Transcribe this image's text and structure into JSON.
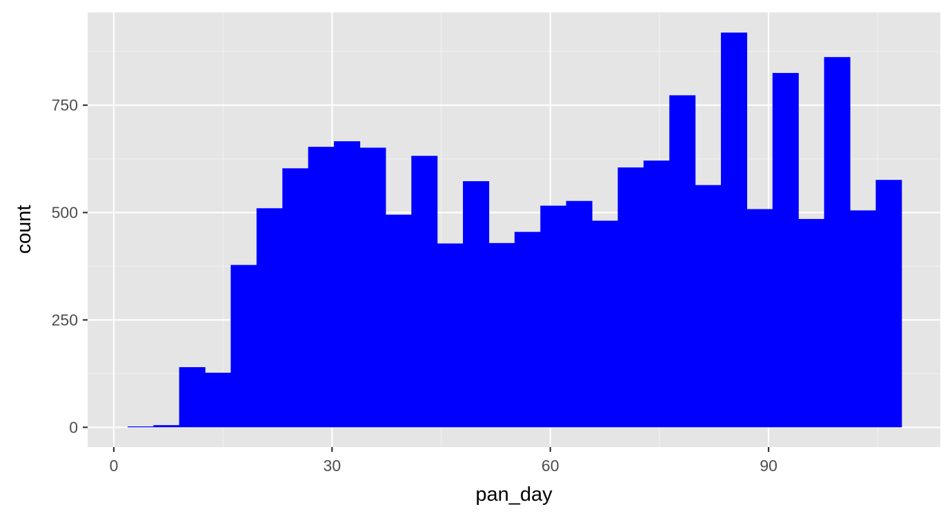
{
  "chart_data": {
    "type": "bar",
    "subtype": "histogram",
    "xlabel": "pan_day",
    "ylabel": "count",
    "xlim": [
      -3.6,
      113.6
    ],
    "ylim": [
      -46,
      966
    ],
    "x_ticks": [
      0,
      30,
      60,
      90
    ],
    "x_minor": [
      15,
      45,
      75,
      105
    ],
    "y_ticks": [
      0,
      250,
      500,
      750
    ],
    "y_minor": [
      125,
      375,
      625,
      875
    ],
    "bin_width": 3.55,
    "bars": [
      {
        "x0": 1.89,
        "x1": 5.44,
        "count": 2
      },
      {
        "x0": 5.44,
        "x1": 8.98,
        "count": 5
      },
      {
        "x0": 8.98,
        "x1": 12.53,
        "count": 140
      },
      {
        "x0": 12.53,
        "x1": 16.07,
        "count": 127
      },
      {
        "x0": 16.07,
        "x1": 19.62,
        "count": 378
      },
      {
        "x0": 19.62,
        "x1": 23.17,
        "count": 510
      },
      {
        "x0": 23.17,
        "x1": 26.71,
        "count": 603
      },
      {
        "x0": 26.71,
        "x1": 30.26,
        "count": 653
      },
      {
        "x0": 30.26,
        "x1": 33.81,
        "count": 666
      },
      {
        "x0": 33.81,
        "x1": 37.35,
        "count": 651
      },
      {
        "x0": 37.35,
        "x1": 40.9,
        "count": 495
      },
      {
        "x0": 40.9,
        "x1": 44.44,
        "count": 632
      },
      {
        "x0": 44.44,
        "x1": 47.99,
        "count": 428
      },
      {
        "x0": 47.99,
        "x1": 51.54,
        "count": 573
      },
      {
        "x0": 51.54,
        "x1": 55.08,
        "count": 429
      },
      {
        "x0": 55.08,
        "x1": 58.63,
        "count": 455
      },
      {
        "x0": 58.63,
        "x1": 62.17,
        "count": 516
      },
      {
        "x0": 62.17,
        "x1": 65.72,
        "count": 527
      },
      {
        "x0": 65.72,
        "x1": 69.27,
        "count": 481
      },
      {
        "x0": 69.27,
        "x1": 72.81,
        "count": 605
      },
      {
        "x0": 72.81,
        "x1": 76.36,
        "count": 621
      },
      {
        "x0": 76.36,
        "x1": 79.9,
        "count": 773
      },
      {
        "x0": 79.9,
        "x1": 83.45,
        "count": 564
      },
      {
        "x0": 83.45,
        "x1": 87.0,
        "count": 919
      },
      {
        "x0": 87.0,
        "x1": 90.54,
        "count": 508
      },
      {
        "x0": 90.54,
        "x1": 94.09,
        "count": 825
      },
      {
        "x0": 94.09,
        "x1": 97.63,
        "count": 485
      },
      {
        "x0": 97.63,
        "x1": 101.18,
        "count": 862
      },
      {
        "x0": 101.18,
        "x1": 104.73,
        "count": 505
      },
      {
        "x0": 104.73,
        "x1": 108.27,
        "count": 576
      }
    ],
    "grid": true,
    "colors": {
      "bar": "#0000ff",
      "panel": "#e5e5e5",
      "grid_major": "#ffffff",
      "grid_minor": "#f2f2f2",
      "tick_text": "#4d4d4d",
      "tick_mark": "#333333"
    }
  }
}
